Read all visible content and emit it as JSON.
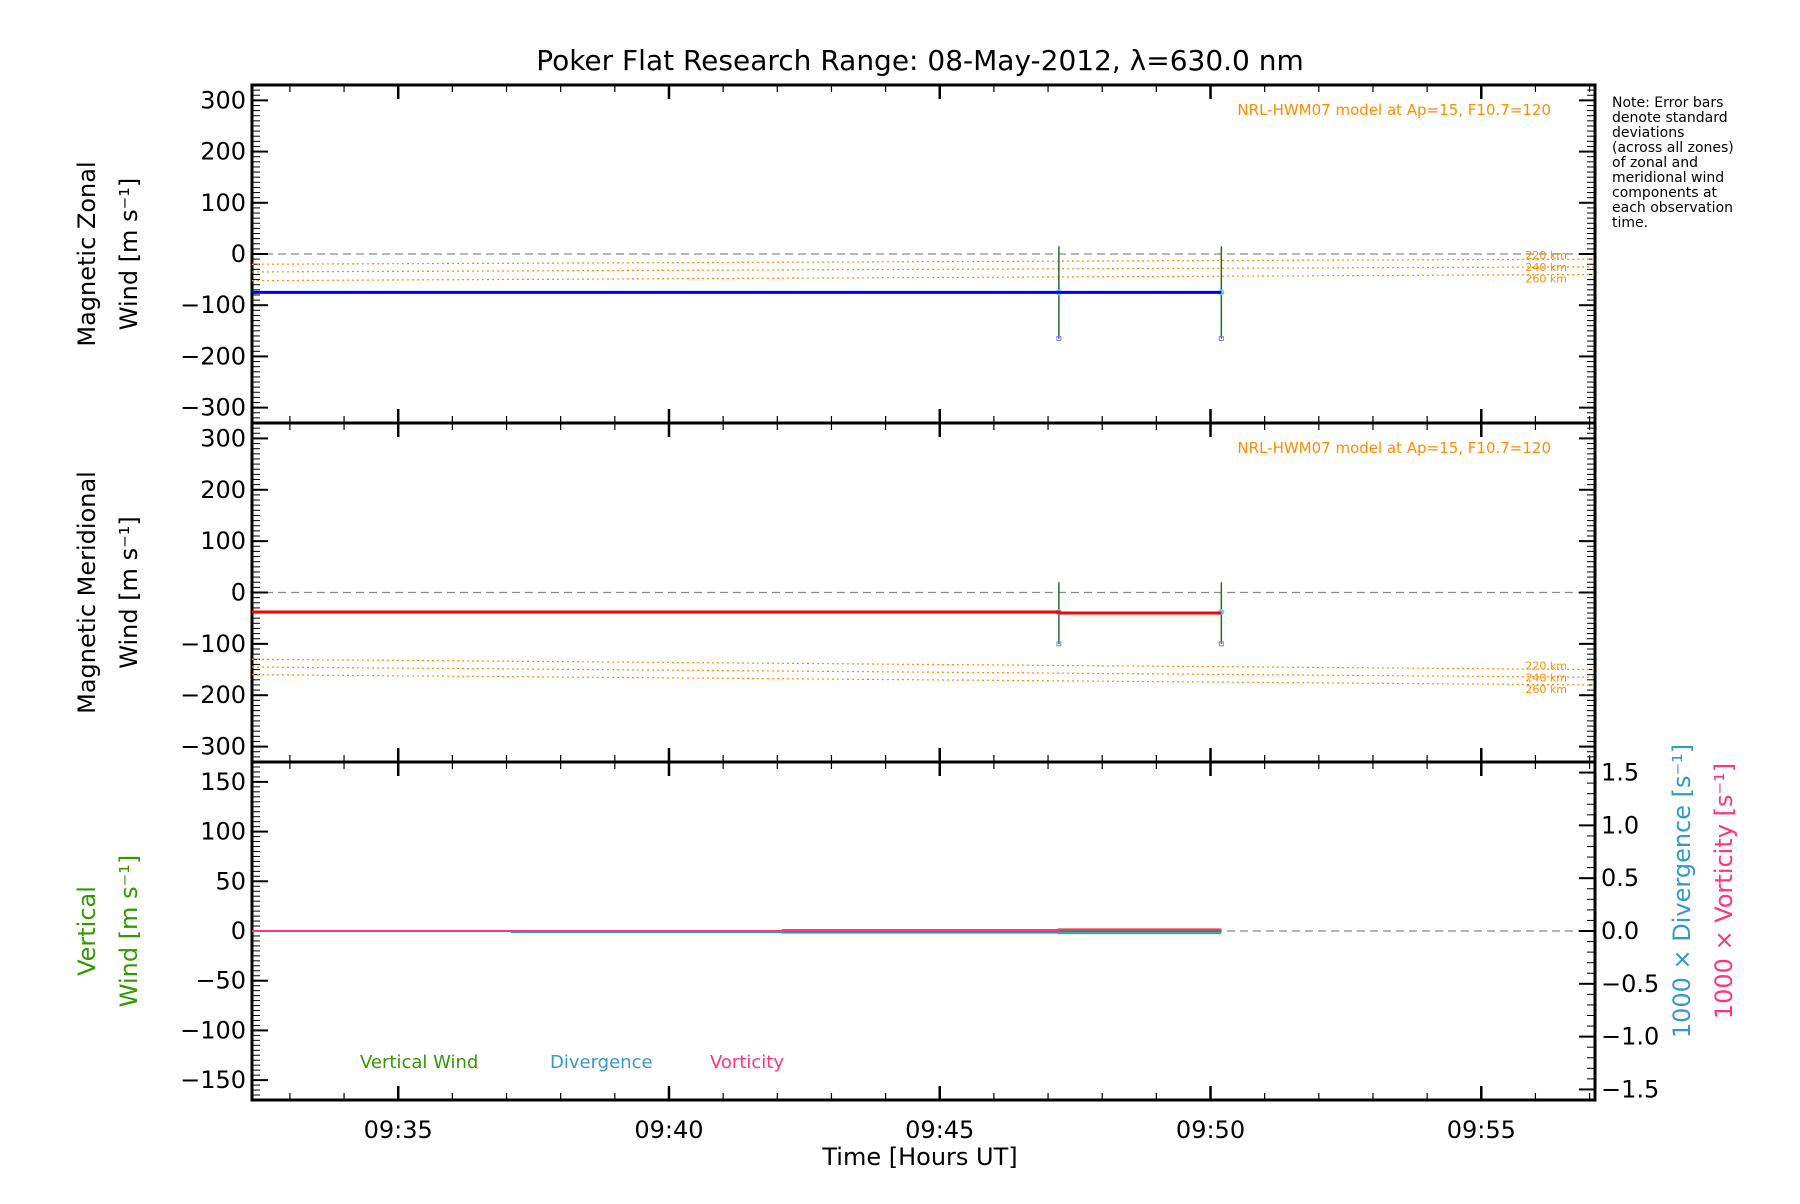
{
  "title": "Poker Flat Research Range: 08-May-2012, λ=630.0 nm",
  "xlabel": "Time [Hours UT]",
  "note_lines": [
    "Note: Error bars",
    "denote standard",
    "deviations",
    "(across all zones)",
    "of zonal and",
    "meridional wind",
    "components at",
    "each observation",
    "time."
  ],
  "colors": {
    "zonal": "#0000ff",
    "meridional": "#ff0000",
    "model": "#ff8c00",
    "vertical": "#339900",
    "divergence": "#3399cc",
    "vorticity": "#ff3380",
    "zero_line": "#888888"
  },
  "chart_data": [
    {
      "type": "line",
      "panel": "zonal",
      "ylabel_lines": [
        "Magnetic Zonal",
        "Wind [m s⁻¹]"
      ],
      "ylim": [
        -330,
        330
      ],
      "yticks": [
        -300,
        -200,
        -100,
        0,
        100,
        200,
        300
      ],
      "xlim": [
        "09:32:18",
        "09:57:06"
      ],
      "xticks": [
        "09:35",
        "09:40",
        "09:45",
        "09:50",
        "09:55"
      ],
      "model_label": "NRL-HWM07 model at Ap=15, F10.7=120",
      "model_altitudes": [
        "220 km",
        "240 km",
        "260 km"
      ],
      "series": [
        {
          "x": [
            "09:32:18",
            "09:47:12",
            "09:50:12"
          ],
          "y": [
            -75,
            -75,
            -75
          ],
          "step": true
        }
      ],
      "error_bars": [
        {
          "x": "09:47:12",
          "low": -165,
          "high": 15
        },
        {
          "x": "09:50:12",
          "low": -165,
          "high": 15
        }
      ],
      "model_lines": [
        {
          "x": [
            "09:32:18",
            "09:57:06"
          ],
          "y": [
            -20,
            -10
          ]
        },
        {
          "x": [
            "09:32:18",
            "09:57:06"
          ],
          "y": [
            -35,
            -25
          ]
        },
        {
          "x": [
            "09:32:18",
            "09:57:06"
          ],
          "y": [
            -52,
            -40
          ]
        }
      ]
    },
    {
      "type": "line",
      "panel": "meridional",
      "ylabel_lines": [
        "Magnetic Meridional",
        "Wind [m s⁻¹]"
      ],
      "ylim": [
        -330,
        330
      ],
      "yticks": [
        -300,
        -200,
        -100,
        0,
        100,
        200,
        300
      ],
      "xlim": [
        "09:32:18",
        "09:57:06"
      ],
      "xticks": [
        "09:35",
        "09:40",
        "09:45",
        "09:50",
        "09:55"
      ],
      "model_label": "NRL-HWM07 model at Ap=15, F10.7=120",
      "model_altitudes": [
        "220 km",
        "240 km",
        "260 km"
      ],
      "series": [
        {
          "x": [
            "09:32:18",
            "09:47:12",
            "09:50:12"
          ],
          "y": [
            -38,
            -40,
            -40
          ],
          "step": true
        }
      ],
      "error_bars": [
        {
          "x": "09:47:12",
          "low": -100,
          "high": 20
        },
        {
          "x": "09:50:12",
          "low": -100,
          "high": 20
        }
      ],
      "model_lines": [
        {
          "x": [
            "09:32:18",
            "09:57:06"
          ],
          "y": [
            -130,
            -150
          ]
        },
        {
          "x": [
            "09:32:18",
            "09:57:06"
          ],
          "y": [
            -145,
            -165
          ]
        },
        {
          "x": [
            "09:32:18",
            "09:57:06"
          ],
          "y": [
            -160,
            -180
          ]
        }
      ]
    },
    {
      "type": "line",
      "panel": "vertical",
      "ylabel_lines": [
        "Vertical",
        "Wind [m s⁻¹]"
      ],
      "ylim": [
        -170,
        170
      ],
      "yticks": [
        -150,
        -100,
        -50,
        0,
        50,
        100,
        150
      ],
      "y2label_lines": [
        "1000 × Divergence [s⁻¹]",
        "1000 × Vorticity [s⁻¹]"
      ],
      "y2lim": [
        -1.6,
        1.6
      ],
      "y2ticks": [
        "-1.5",
        "-1.0",
        "-0.5",
        "0.0",
        "0.5",
        "1.0",
        "1.5"
      ],
      "xlim": [
        "09:32:18",
        "09:57:06"
      ],
      "xticks": [
        "09:35",
        "09:40",
        "09:45",
        "09:50",
        "09:55"
      ],
      "legend": [
        "Vertical Wind",
        "Divergence",
        "Vorticity"
      ],
      "series": [
        {
          "name": "Vertical Wind",
          "x": [
            "09:32:18",
            "09:50:12"
          ],
          "y": [
            0,
            0
          ]
        },
        {
          "name": "Divergence",
          "x": [
            "09:32:18",
            "09:37:06",
            "09:42:06",
            "09:47:12",
            "09:50:12"
          ],
          "y": [
            0.0,
            -0.01,
            -0.015,
            -0.02,
            -0.02
          ],
          "step": true
        },
        {
          "name": "Vorticity",
          "x": [
            "09:32:18",
            "09:42:06",
            "09:47:12",
            "09:50:12"
          ],
          "y": [
            0.0,
            0.01,
            0.015,
            0.015
          ],
          "step": true
        }
      ]
    }
  ]
}
